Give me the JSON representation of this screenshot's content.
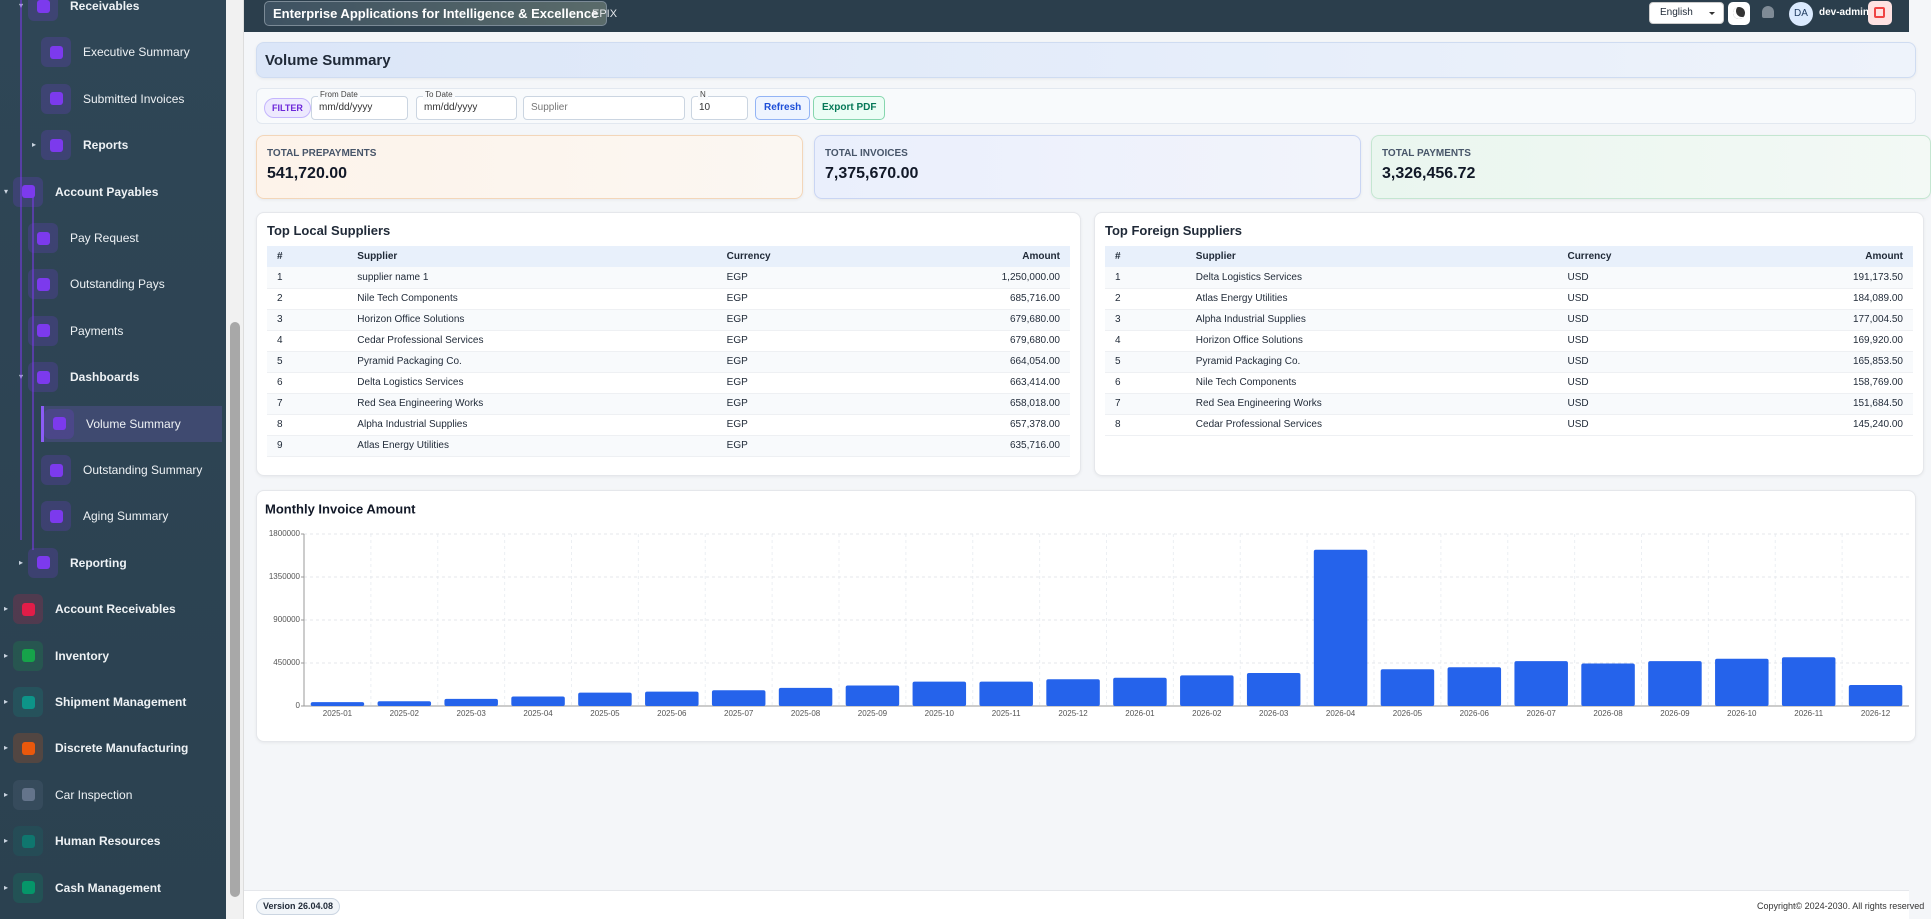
{
  "header": {
    "app_title": "Enterprise Applications for Intelligence & Excellence",
    "app_code": "EPIX",
    "language": "English",
    "avatar": "DA",
    "user": "dev-admin"
  },
  "sidebar": {
    "items": [
      "Receivables",
      "Executive Summary",
      "Submitted Invoices",
      "Reports",
      "Account Payables",
      "Pay Request",
      "Outstanding Pays",
      "Payments",
      "Dashboards",
      "Volume Summary",
      "Outstanding Summary",
      "Aging Summary",
      "Reporting",
      "Account Receivables",
      "Inventory",
      "Shipment Management",
      "Discrete Manufacturing",
      "Car Inspection",
      "Human Resources",
      "Cash Management"
    ]
  },
  "page": {
    "title": "Volume Summary"
  },
  "filter": {
    "badge": "FILTER",
    "from_label": "From Date",
    "from_placeholder": "mm/dd/yyyy",
    "to_label": "To Date",
    "to_placeholder": "mm/dd/yyyy",
    "supplier_placeholder": "Supplier",
    "n_label": "N",
    "n_value": "10",
    "refresh": "Refresh",
    "export": "Export PDF"
  },
  "kpis": [
    {
      "label": "TOTAL PREPAYMENTS",
      "value": "541,720.00"
    },
    {
      "label": "TOTAL INVOICES",
      "value": "7,375,670.00"
    },
    {
      "label": "TOTAL PAYMENTS",
      "value": "3,326,456.72"
    }
  ],
  "tables": [
    {
      "title": "Top Local Suppliers",
      "columns": [
        "#",
        "Supplier",
        "Currency",
        "Amount"
      ],
      "rows": [
        [
          "1",
          "supplier name 1",
          "EGP",
          "1,250,000.00"
        ],
        [
          "2",
          "Nile Tech Components",
          "EGP",
          "685,716.00"
        ],
        [
          "3",
          "Horizon Office Solutions",
          "EGP",
          "679,680.00"
        ],
        [
          "4",
          "Cedar Professional Services",
          "EGP",
          "679,680.00"
        ],
        [
          "5",
          "Pyramid Packaging Co.",
          "EGP",
          "664,054.00"
        ],
        [
          "6",
          "Delta Logistics Services",
          "EGP",
          "663,414.00"
        ],
        [
          "7",
          "Red Sea Engineering Works",
          "EGP",
          "658,018.00"
        ],
        [
          "8",
          "Alpha Industrial Supplies",
          "EGP",
          "657,378.00"
        ],
        [
          "9",
          "Atlas Energy Utilities",
          "EGP",
          "635,716.00"
        ]
      ]
    },
    {
      "title": "Top Foreign Suppliers",
      "columns": [
        "#",
        "Supplier",
        "Currency",
        "Amount"
      ],
      "rows": [
        [
          "1",
          "Delta Logistics Services",
          "USD",
          "191,173.50"
        ],
        [
          "2",
          "Atlas Energy Utilities",
          "USD",
          "184,089.00"
        ],
        [
          "3",
          "Alpha Industrial Supplies",
          "USD",
          "177,004.50"
        ],
        [
          "4",
          "Horizon Office Solutions",
          "USD",
          "169,920.00"
        ],
        [
          "5",
          "Pyramid Packaging Co.",
          "USD",
          "165,853.50"
        ],
        [
          "6",
          "Nile Tech Components",
          "USD",
          "158,769.00"
        ],
        [
          "7",
          "Red Sea Engineering Works",
          "USD",
          "151,684.50"
        ],
        [
          "8",
          "Cedar Professional Services",
          "USD",
          "145,240.00"
        ]
      ]
    }
  ],
  "chart_data": {
    "type": "bar",
    "title": "Monthly Invoice Amount",
    "categories": [
      "2025-01",
      "2025-02",
      "2025-03",
      "2025-04",
      "2025-05",
      "2025-06",
      "2025-07",
      "2025-08",
      "2025-09",
      "2025-10",
      "2025-11",
      "2025-12",
      "2026-01",
      "2026-02",
      "2026-03",
      "2026-04",
      "2026-05",
      "2026-06",
      "2026-07",
      "2026-08",
      "2026-09",
      "2026-10",
      "2026-11",
      "2026-12"
    ],
    "values": [
      40000,
      50000,
      75000,
      100000,
      140000,
      150000,
      165000,
      190000,
      215000,
      255000,
      255000,
      280000,
      295000,
      320000,
      345000,
      1635000,
      385000,
      405000,
      470000,
      445000,
      470000,
      495000,
      510000,
      220000
    ],
    "color": "#2563eb",
    "ylim": [
      0,
      1800000
    ],
    "yticks": [
      0,
      450000,
      900000,
      1350000,
      1800000
    ],
    "grid": true
  },
  "footer": {
    "version": "Version 26.04.08",
    "copyright": "Copyright© 2024-2030. All rights reserved"
  }
}
